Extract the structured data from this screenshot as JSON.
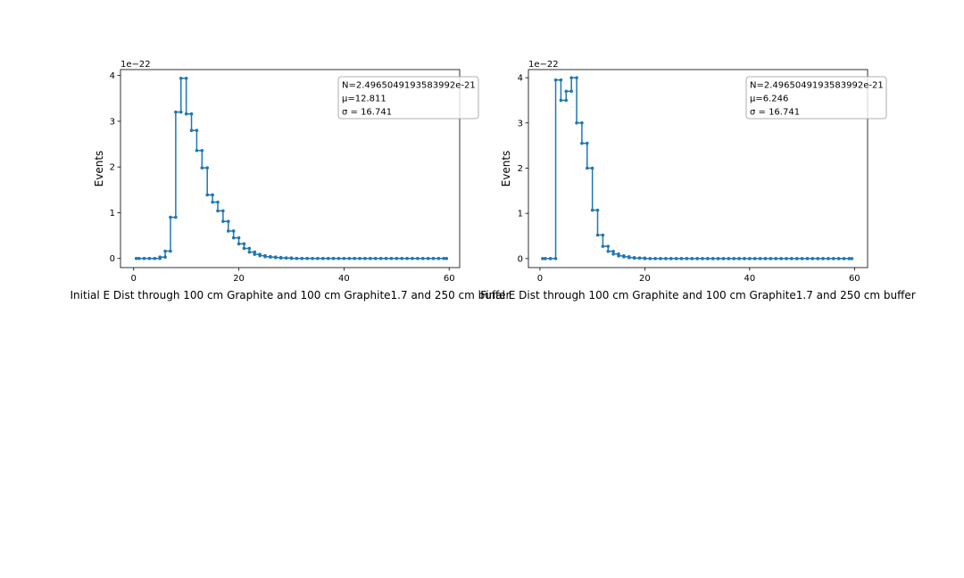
{
  "chart_data": [
    {
      "type": "line",
      "drawstyle": "steps-mid",
      "marker": "dot",
      "color": "#1f77b4",
      "xlabel": "Initial E Dist through 100 cm Graphite and 100 cm Graphite1.7 and 250 cm buffer",
      "ylabel": "Events",
      "offset_text": "1e−22",
      "xlim": [
        -2.5,
        62
      ],
      "ylim": [
        -0.2,
        4.13
      ],
      "xticks": [
        "0",
        "20",
        "40",
        "60"
      ],
      "yticks": [
        "0",
        "1",
        "2",
        "3",
        "4"
      ],
      "legend": {
        "location": "top-right",
        "lines": [
          "N=2.4965049193583992e-21",
          "μ=12.811",
          "σ = 16.741"
        ]
      },
      "x": [
        0.5,
        1.5,
        2.5,
        3.5,
        4.5,
        5.5,
        6.5,
        7.5,
        8.5,
        9.5,
        10.5,
        11.5,
        12.5,
        13.5,
        14.5,
        15.5,
        16.5,
        17.5,
        18.5,
        19.5,
        20.5,
        21.5,
        22.5,
        23.5,
        24.5,
        25.5,
        26.5,
        27.5,
        28.5,
        29.5,
        30.5,
        31.5,
        32.5,
        33.5,
        34.5,
        35.5,
        36.5,
        37.5,
        38.5,
        39.5,
        40.5,
        41.5,
        42.5,
        43.5,
        44.5,
        45.5,
        46.5,
        47.5,
        48.5,
        49.5,
        50.5,
        51.5,
        52.5,
        53.5,
        54.5,
        55.5,
        56.5,
        57.5,
        58.5,
        59.5
      ],
      "y": [
        0,
        0,
        0,
        0,
        0,
        0.03,
        0.16,
        0.9,
        3.2,
        3.94,
        3.16,
        2.8,
        2.36,
        1.98,
        1.39,
        1.23,
        1.04,
        0.81,
        0.6,
        0.45,
        0.32,
        0.22,
        0.14,
        0.09,
        0.06,
        0.04,
        0.03,
        0.02,
        0.01,
        0.01,
        0,
        0,
        0,
        0,
        0,
        0,
        0,
        0,
        0,
        0,
        0,
        0,
        0,
        0,
        0,
        0,
        0,
        0,
        0,
        0,
        0,
        0,
        0,
        0,
        0,
        0,
        0,
        0,
        0,
        0
      ]
    },
    {
      "type": "line",
      "drawstyle": "steps-mid",
      "marker": "dot",
      "color": "#1f77b4",
      "xlabel": "Final E Dist through 100 cm Graphite and 100 cm Graphite1.7 and 250 cm buffer",
      "ylabel": "Events",
      "offset_text": "1e−22",
      "xlim": [
        -2.2,
        62.5
      ],
      "ylim": [
        -0.2,
        4.18
      ],
      "xticks": [
        "0",
        "20",
        "40",
        "60"
      ],
      "yticks": [
        "0",
        "1",
        "2",
        "3",
        "4"
      ],
      "legend": {
        "location": "top-right",
        "lines": [
          "N=2.4965049193583992e-21",
          "μ=6.246",
          "σ = 16.741"
        ]
      },
      "x": [
        0.5,
        1.5,
        2.5,
        3.5,
        4.5,
        5.5,
        6.5,
        7.5,
        8.5,
        9.5,
        10.5,
        11.5,
        12.5,
        13.5,
        14.5,
        15.5,
        16.5,
        17.5,
        18.5,
        19.5,
        20.5,
        21.5,
        22.5,
        23.5,
        24.5,
        25.5,
        26.5,
        27.5,
        28.5,
        29.5,
        30.5,
        31.5,
        32.5,
        33.5,
        34.5,
        35.5,
        36.5,
        37.5,
        38.5,
        39.5,
        40.5,
        41.5,
        42.5,
        43.5,
        44.5,
        45.5,
        46.5,
        47.5,
        48.5,
        49.5,
        50.5,
        51.5,
        52.5,
        53.5,
        54.5,
        55.5,
        56.5,
        57.5,
        58.5,
        59.5
      ],
      "y": [
        0,
        0,
        0,
        3.95,
        3.5,
        3.7,
        4.0,
        3.0,
        2.55,
        2.0,
        1.07,
        0.52,
        0.27,
        0.16,
        0.1,
        0.06,
        0.04,
        0.02,
        0.01,
        0.01,
        0,
        0,
        0,
        0,
        0,
        0,
        0,
        0,
        0,
        0,
        0,
        0,
        0,
        0,
        0,
        0,
        0,
        0,
        0,
        0,
        0,
        0,
        0,
        0,
        0,
        0,
        0,
        0,
        0,
        0,
        0,
        0,
        0,
        0,
        0,
        0,
        0,
        0,
        0,
        0
      ]
    }
  ]
}
